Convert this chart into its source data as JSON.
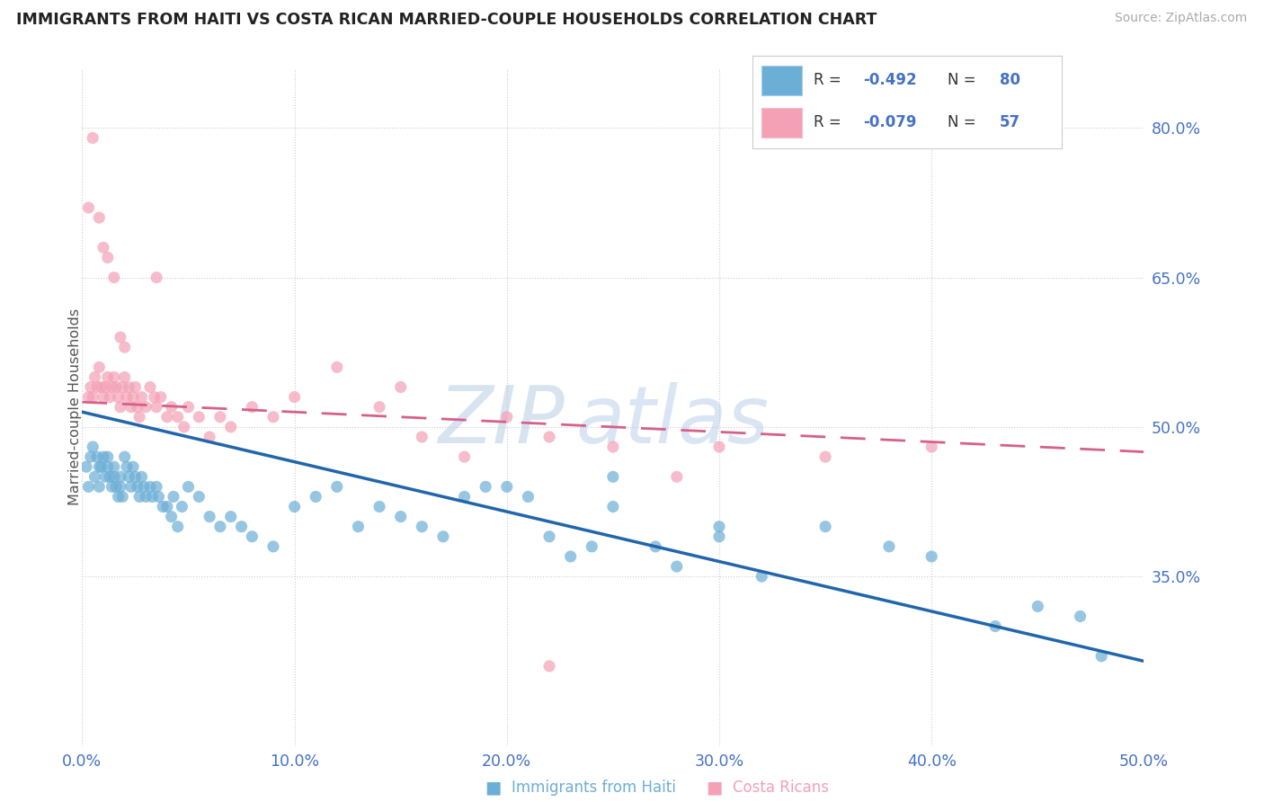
{
  "title": "IMMIGRANTS FROM HAITI VS COSTA RICAN MARRIED-COUPLE HOUSEHOLDS CORRELATION CHART",
  "source": "Source: ZipAtlas.com",
  "ylabel": "Married-couple Households",
  "legend_label1": "Immigrants from Haiti",
  "legend_label2": "Costa Ricans",
  "r1": -0.492,
  "n1": 80,
  "r2": -0.079,
  "n2": 57,
  "color1": "#6baed6",
  "color2": "#f4a0b5",
  "line_color1": "#2166ac",
  "line_color2": "#d6608a",
  "tick_color": "#4472c4",
  "xlim": [
    0.0,
    0.5
  ],
  "ylim": [
    0.18,
    0.86
  ],
  "yticks": [
    0.35,
    0.5,
    0.65,
    0.8
  ],
  "ytick_labels": [
    "35.0%",
    "50.0%",
    "65.0%",
    "80.0%"
  ],
  "xticks": [
    0.0,
    0.1,
    0.2,
    0.3,
    0.4,
    0.5
  ],
  "xtick_labels": [
    "0.0%",
    "10.0%",
    "20.0%",
    "30.0%",
    "40.0%",
    "50.0%"
  ],
  "blue_x": [
    0.002,
    0.003,
    0.004,
    0.005,
    0.006,
    0.007,
    0.008,
    0.008,
    0.009,
    0.01,
    0.011,
    0.012,
    0.012,
    0.013,
    0.014,
    0.015,
    0.015,
    0.016,
    0.017,
    0.018,
    0.018,
    0.019,
    0.02,
    0.021,
    0.022,
    0.023,
    0.024,
    0.025,
    0.026,
    0.027,
    0.028,
    0.029,
    0.03,
    0.032,
    0.033,
    0.035,
    0.036,
    0.038,
    0.04,
    0.042,
    0.043,
    0.045,
    0.047,
    0.05,
    0.055,
    0.06,
    0.065,
    0.07,
    0.075,
    0.08,
    0.09,
    0.1,
    0.11,
    0.12,
    0.13,
    0.14,
    0.15,
    0.16,
    0.17,
    0.18,
    0.19,
    0.2,
    0.21,
    0.22,
    0.23,
    0.24,
    0.25,
    0.27,
    0.28,
    0.3,
    0.32,
    0.35,
    0.38,
    0.4,
    0.43,
    0.45,
    0.47,
    0.48,
    0.3,
    0.25
  ],
  "blue_y": [
    0.46,
    0.44,
    0.47,
    0.48,
    0.45,
    0.47,
    0.46,
    0.44,
    0.46,
    0.47,
    0.45,
    0.47,
    0.46,
    0.45,
    0.44,
    0.46,
    0.45,
    0.44,
    0.43,
    0.45,
    0.44,
    0.43,
    0.47,
    0.46,
    0.45,
    0.44,
    0.46,
    0.45,
    0.44,
    0.43,
    0.45,
    0.44,
    0.43,
    0.44,
    0.43,
    0.44,
    0.43,
    0.42,
    0.42,
    0.41,
    0.43,
    0.4,
    0.42,
    0.44,
    0.43,
    0.41,
    0.4,
    0.41,
    0.4,
    0.39,
    0.38,
    0.42,
    0.43,
    0.44,
    0.4,
    0.42,
    0.41,
    0.4,
    0.39,
    0.43,
    0.44,
    0.44,
    0.43,
    0.39,
    0.37,
    0.38,
    0.42,
    0.38,
    0.36,
    0.39,
    0.35,
    0.4,
    0.38,
    0.37,
    0.3,
    0.32,
    0.31,
    0.27,
    0.4,
    0.45
  ],
  "pink_x": [
    0.003,
    0.004,
    0.005,
    0.006,
    0.007,
    0.008,
    0.009,
    0.01,
    0.011,
    0.012,
    0.013,
    0.014,
    0.015,
    0.016,
    0.017,
    0.018,
    0.019,
    0.02,
    0.021,
    0.022,
    0.023,
    0.024,
    0.025,
    0.026,
    0.027,
    0.028,
    0.03,
    0.032,
    0.034,
    0.035,
    0.037,
    0.04,
    0.042,
    0.045,
    0.048,
    0.05,
    0.055,
    0.06,
    0.065,
    0.07,
    0.08,
    0.09,
    0.1,
    0.12,
    0.14,
    0.15,
    0.16,
    0.18,
    0.2,
    0.22,
    0.25,
    0.28,
    0.3,
    0.35,
    0.4,
    0.035,
    0.22
  ],
  "pink_y": [
    0.53,
    0.54,
    0.53,
    0.55,
    0.54,
    0.56,
    0.54,
    0.53,
    0.54,
    0.55,
    0.53,
    0.54,
    0.55,
    0.54,
    0.53,
    0.52,
    0.54,
    0.55,
    0.53,
    0.54,
    0.52,
    0.53,
    0.54,
    0.52,
    0.51,
    0.53,
    0.52,
    0.54,
    0.53,
    0.52,
    0.53,
    0.51,
    0.52,
    0.51,
    0.5,
    0.52,
    0.51,
    0.49,
    0.51,
    0.5,
    0.52,
    0.51,
    0.53,
    0.56,
    0.52,
    0.54,
    0.49,
    0.47,
    0.51,
    0.49,
    0.48,
    0.45,
    0.48,
    0.47,
    0.48,
    0.65,
    0.26
  ],
  "pink_outliers_x": [
    0.003,
    0.005,
    0.008,
    0.01,
    0.012,
    0.015,
    0.018,
    0.02
  ],
  "pink_outliers_y": [
    0.72,
    0.79,
    0.71,
    0.68,
    0.67,
    0.65,
    0.59,
    0.58
  ]
}
